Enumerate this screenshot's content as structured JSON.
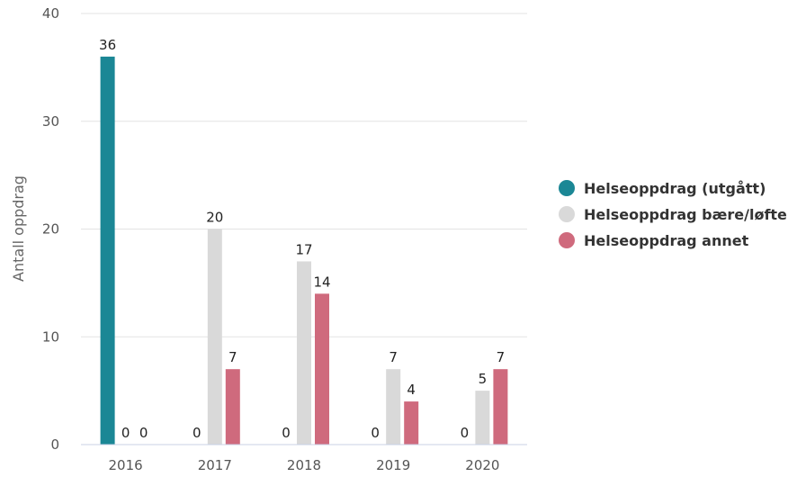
{
  "chart_data": {
    "type": "bar",
    "ylabel": "Antall oppdrag",
    "xlabel": "",
    "ylim": [
      0,
      40
    ],
    "yticks": [
      0,
      10,
      20,
      30,
      40
    ],
    "grid": true,
    "legend_position": "right",
    "categories": [
      "2016",
      "2017",
      "2018",
      "2019",
      "2020"
    ],
    "series": [
      {
        "name": "Helseoppdrag (utgått)",
        "color": "#1b8795",
        "values": [
          36,
          0,
          0,
          0,
          0
        ]
      },
      {
        "name": "Helseoppdrag bære/løfte",
        "color": "#d9d9d9",
        "values": [
          0,
          20,
          17,
          7,
          5
        ]
      },
      {
        "name": "Helseoppdrag annet",
        "color": "#cf6a7d",
        "values": [
          0,
          7,
          14,
          4,
          7
        ]
      }
    ]
  }
}
